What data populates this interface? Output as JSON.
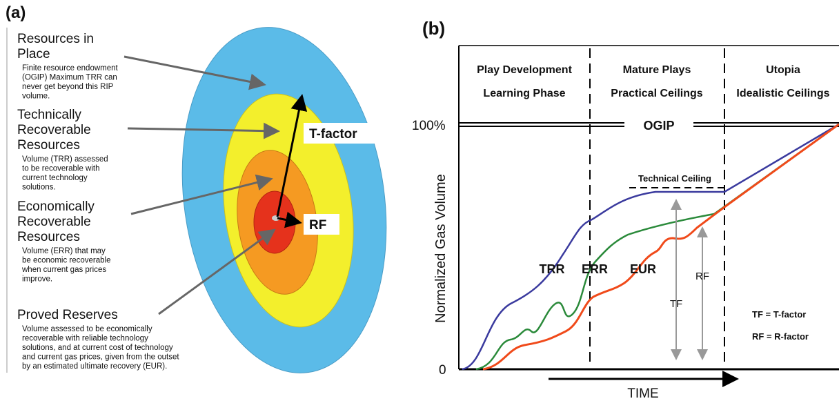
{
  "panel_a": {
    "label": "(a)",
    "items": [
      {
        "title_lines": [
          "Resources in",
          "Place"
        ],
        "description_lines": [
          "Finite resource endowment",
          "(OGIP)  Maximum TRR can",
          "never  get beyond this RIP",
          "volume."
        ]
      },
      {
        "title_lines": [
          "Technically",
          "Recoverable",
          "Resources"
        ],
        "description_lines": [
          "Volume (TRR) assessed",
          "to be recoverable with",
          "current technology",
          "solutions."
        ]
      },
      {
        "title_lines": [
          "Economically",
          "Recoverable",
          "Resources"
        ],
        "description_lines": [
          "Volume (ERR) that may",
          "be economic recoverable",
          "when current gas prices",
          "improve."
        ]
      },
      {
        "title_lines": [
          "Proved Reserves"
        ],
        "description_lines": [
          "Volume assessed to be economically",
          "recoverable with reliable technology",
          "solutions, and at current cost of technology",
          "and current gas prices, given from the outset",
          "by an estimated ultimate recovery (EUR)."
        ]
      }
    ],
    "t_factor": "T-factor",
    "rf": "RF"
  },
  "panel_b": {
    "label": "(b)",
    "y_top": "100%",
    "y_bottom": "0",
    "y_axis_label": "Normalized Gas Volume",
    "ogip": "OGIP",
    "phases": [
      {
        "line1": "Play Development",
        "line2": "Learning Phase"
      },
      {
        "line1": "Mature Plays",
        "line2": "Practical Ceilings"
      },
      {
        "line1": "Utopia",
        "line2": "Idealistic Ceilings"
      }
    ],
    "technical_ceiling": "Technical Ceiling",
    "curve_labels": [
      "TRR",
      "ERR",
      "EUR"
    ],
    "tf": "TF",
    "rf": "RF",
    "legend": [
      "TF = T-factor",
      "RF = R-factor"
    ],
    "x_axis_label": "TIME"
  }
}
